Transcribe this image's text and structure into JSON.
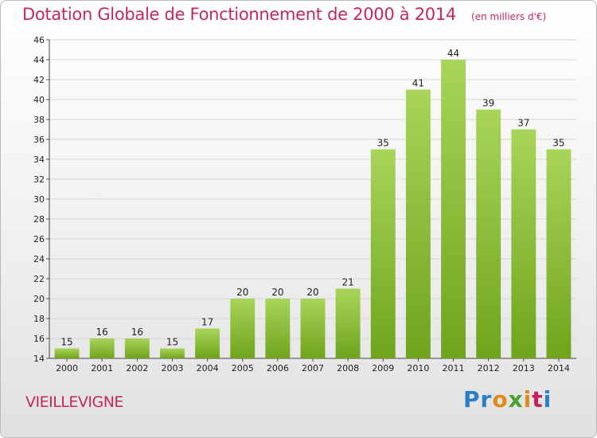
{
  "header": {
    "title": "Dotation Globale de Fonctionnement de 2000 à 2014",
    "unit": "(en milliers d'€)"
  },
  "footer": {
    "commune": "VIEILLEVIGNE",
    "logo_text": "Proxiti",
    "logo_colors": [
      "#2a7fc8",
      "#2a7fc8",
      "#e08a1a",
      "#4aa02a",
      "#e08a1a",
      "#c81e5a",
      "#2a7fc8"
    ]
  },
  "colors": {
    "bar_light": "#a9d45a",
    "bar_dark": "#6fa41c",
    "title": "#c4275f",
    "grid": "#d6d6d6"
  },
  "chart_data": {
    "type": "bar",
    "title": "Dotation Globale de Fonctionnement de 2000 à 2014",
    "subtitle": "(en milliers d'€)",
    "xlabel": "",
    "ylabel": "",
    "categories": [
      "2000",
      "2001",
      "2002",
      "2003",
      "2004",
      "2005",
      "2006",
      "2007",
      "2008",
      "2009",
      "2010",
      "2011",
      "2012",
      "2013",
      "2014"
    ],
    "values": [
      15,
      16,
      16,
      15,
      17,
      20,
      20,
      20,
      21,
      35,
      41,
      44,
      39,
      37,
      35
    ],
    "ylim": [
      14,
      46
    ],
    "yticks": [
      14,
      16,
      18,
      20,
      22,
      24,
      26,
      28,
      30,
      32,
      34,
      36,
      38,
      40,
      42,
      44,
      46
    ],
    "grid": true,
    "legend": "none"
  }
}
